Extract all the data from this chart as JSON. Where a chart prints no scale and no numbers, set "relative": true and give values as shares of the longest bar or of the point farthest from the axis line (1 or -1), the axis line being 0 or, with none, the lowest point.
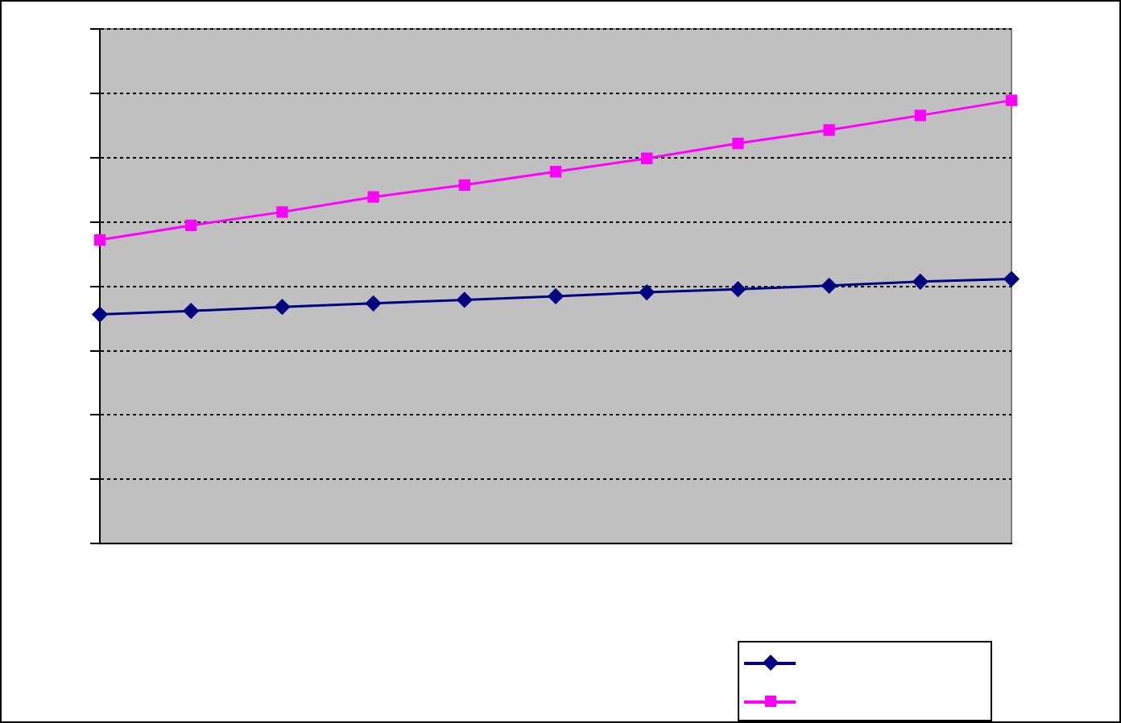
{
  "chart_data": {
    "type": "line",
    "relative": true,
    "categories": [
      null,
      null,
      null,
      null,
      null,
      null,
      null,
      null,
      null,
      null,
      null
    ],
    "series": [
      {
        "color": "#000080",
        "marker": "diamond",
        "values": [
          0.517,
          0.525,
          0.534,
          0.542,
          0.55,
          0.558,
          0.567,
          0.574,
          0.582,
          0.591,
          0.597
        ]
      },
      {
        "color": "#ff00ff",
        "marker": "square",
        "values": [
          0.685,
          0.718,
          0.748,
          0.782,
          0.809,
          0.839,
          0.869,
          0.903,
          0.933,
          0.966,
          1
        ]
      }
    ],
    "grid": "y"
  }
}
